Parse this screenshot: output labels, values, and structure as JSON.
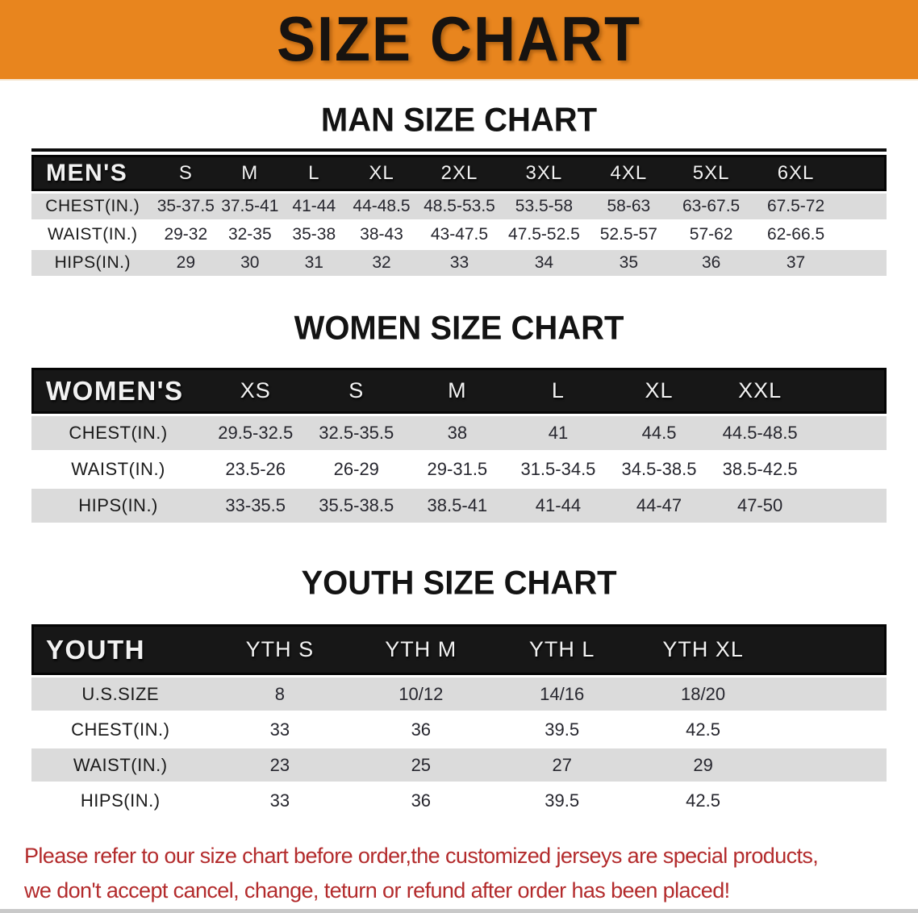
{
  "banner": {
    "title": "SIZE CHART",
    "bg_color": "#E8851E",
    "title_color": "#171310"
  },
  "sections": [
    {
      "id": "men",
      "heading": "MAN SIZE CHART",
      "table": {
        "group_label": "MEN'S",
        "columns": [
          "S",
          "M",
          "L",
          "XL",
          "2XL",
          "3XL",
          "4XL",
          "5XL",
          "6XL"
        ],
        "rows": [
          {
            "label": "CHEST(IN.)",
            "values": [
              "35-37.5",
              "37.5-41",
              "41-44",
              "44-48.5",
              "48.5-53.5",
              "53.5-58",
              "58-63",
              "63-67.5",
              "67.5-72"
            ]
          },
          {
            "label": "WAIST(IN.)",
            "values": [
              "29-32",
              "32-35",
              "35-38",
              "38-43",
              "43-47.5",
              "47.5-52.5",
              "52.5-57",
              "57-62",
              "62-66.5"
            ]
          },
          {
            "label": "HIPS(IN.)",
            "values": [
              "29",
              "30",
              "31",
              "32",
              "33",
              "34",
              "35",
              "36",
              "37"
            ]
          }
        ]
      }
    },
    {
      "id": "women",
      "heading": "WOMEN SIZE CHART",
      "table": {
        "group_label": "WOMEN'S",
        "columns": [
          "XS",
          "S",
          "M",
          "L",
          "XL",
          "XXL"
        ],
        "rows": [
          {
            "label": "CHEST(IN.)",
            "values": [
              "29.5-32.5",
              "32.5-35.5",
              "38",
              "41",
              "44.5",
              "44.5-48.5"
            ]
          },
          {
            "label": "WAIST(IN.)",
            "values": [
              "23.5-26",
              "26-29",
              "29-31.5",
              "31.5-34.5",
              "34.5-38.5",
              "38.5-42.5"
            ]
          },
          {
            "label": "HIPS(IN.)",
            "values": [
              "33-35.5",
              "35.5-38.5",
              "38.5-41",
              "41-44",
              "44-47",
              "47-50"
            ]
          }
        ]
      }
    },
    {
      "id": "youth",
      "heading": "YOUTH SIZE CHART",
      "table": {
        "group_label": "YOUTH",
        "columns": [
          "YTH S",
          "YTH M",
          "YTH L",
          "YTH XL"
        ],
        "rows": [
          {
            "label": "U.S.SIZE",
            "values": [
              "8",
              "10/12",
              "14/16",
              "18/20"
            ]
          },
          {
            "label": "CHEST(IN.)",
            "values": [
              "33",
              "36",
              "39.5",
              "42.5"
            ]
          },
          {
            "label": "WAIST(IN.)",
            "values": [
              "23",
              "25",
              "27",
              "29"
            ]
          },
          {
            "label": "HIPS(IN.)",
            "values": [
              "33",
              "36",
              "39.5",
              "42.5"
            ]
          }
        ]
      }
    }
  ],
  "footer": {
    "lines": [
      "Please refer to our size chart before order,the customized jerseys are special products,",
      "we don't accept cancel, change, teturn or refund after order has been placed!"
    ],
    "text_color": "#B32B2C"
  },
  "table_colors": {
    "header_bg": "#171717",
    "header_text": "#F2F2F2",
    "stripe_row_bg": "#DBDBDB",
    "plain_row_bg": "#FFFFFF"
  }
}
